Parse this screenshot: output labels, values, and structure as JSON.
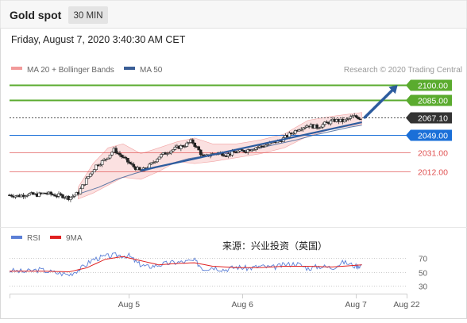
{
  "header": {
    "title": "Gold spot",
    "timeframe_badge": "30 MIN",
    "datetime": "Friday, August 7, 2020 3:40:30 AM CET"
  },
  "legend": {
    "ma20_bb_label": "MA 20 + Bollinger Bands",
    "ma50_label": "MA 50",
    "attribution": "Research © 2020 Trading Central",
    "rsi_label": "RSI",
    "rsi_ma_label": "9MA",
    "source_label": "来源：兴业投资（英国）"
  },
  "colors": {
    "price_green": "#5aab2e",
    "price_blue": "#1a6fd8",
    "price_red": "#e05252",
    "current_price_bg": "#333333",
    "arrow_blue": "#2d5c9e",
    "ma50_line": "#3a5e96",
    "bollinger_fill": "#f7c8c8",
    "rsi_line": "#5b7fd6",
    "rsi_ma_line": "#e02020"
  },
  "chart_data": [
    {
      "type": "candlestick",
      "title": "Gold spot",
      "ylim": [
        1985,
        2110
      ],
      "price_levels": [
        {
          "label": "2100.00",
          "value": 2100.0,
          "kind": "resistance",
          "color": "#5aab2e"
        },
        {
          "label": "2085.00",
          "value": 2085.0,
          "kind": "resistance",
          "color": "#5aab2e"
        },
        {
          "label": "2067.10",
          "value": 2067.1,
          "kind": "current",
          "color": "#333333"
        },
        {
          "label": "2049.00",
          "value": 2049.0,
          "kind": "pivot",
          "color": "#1a6fd8"
        },
        {
          "label": "2031.00",
          "value": 2031.0,
          "kind": "support",
          "color": "#e05252"
        },
        {
          "label": "2012.00",
          "value": 2012.0,
          "kind": "support",
          "color": "#e05252"
        }
      ],
      "x_tick_labels": [
        "Aug 5",
        "Aug 6",
        "Aug 7",
        "Aug 22"
      ],
      "price_path": [
        {
          "t": 0,
          "y": 1988
        },
        {
          "t": 3,
          "y": 1987
        },
        {
          "t": 6,
          "y": 1989
        },
        {
          "t": 9,
          "y": 1988
        },
        {
          "t": 12,
          "y": 1990
        },
        {
          "t": 15,
          "y": 1988
        },
        {
          "t": 18,
          "y": 1987
        },
        {
          "t": 20,
          "y": 1985
        },
        {
          "t": 23,
          "y": 1990
        },
        {
          "t": 26,
          "y": 2005
        },
        {
          "t": 29,
          "y": 2018
        },
        {
          "t": 32,
          "y": 2024
        },
        {
          "t": 35,
          "y": 2034
        },
        {
          "t": 38,
          "y": 2026
        },
        {
          "t": 41,
          "y": 2018
        },
        {
          "t": 44,
          "y": 2012
        },
        {
          "t": 47,
          "y": 2018
        },
        {
          "t": 50,
          "y": 2027
        },
        {
          "t": 53,
          "y": 2032
        },
        {
          "t": 56,
          "y": 2036
        },
        {
          "t": 59,
          "y": 2039
        },
        {
          "t": 61,
          "y": 2043
        },
        {
          "t": 63,
          "y": 2035
        },
        {
          "t": 65,
          "y": 2026
        },
        {
          "t": 67,
          "y": 2029
        },
        {
          "t": 70,
          "y": 2031
        },
        {
          "t": 73,
          "y": 2029
        },
        {
          "t": 76,
          "y": 2032
        },
        {
          "t": 79,
          "y": 2033
        },
        {
          "t": 82,
          "y": 2036
        },
        {
          "t": 85,
          "y": 2038
        },
        {
          "t": 88,
          "y": 2041
        },
        {
          "t": 91,
          "y": 2044
        },
        {
          "t": 94,
          "y": 2050
        },
        {
          "t": 97,
          "y": 2056
        },
        {
          "t": 100,
          "y": 2059
        },
        {
          "t": 103,
          "y": 2057
        },
        {
          "t": 106,
          "y": 2061
        },
        {
          "t": 109,
          "y": 2064
        },
        {
          "t": 112,
          "y": 2063
        },
        {
          "t": 115,
          "y": 2068
        },
        {
          "t": 118,
          "y": 2066
        }
      ],
      "ma50_path": [
        {
          "t": 24,
          "y": 1990
        },
        {
          "t": 30,
          "y": 1996
        },
        {
          "t": 36,
          "y": 2004
        },
        {
          "t": 42,
          "y": 2010
        },
        {
          "t": 48,
          "y": 2015
        },
        {
          "t": 54,
          "y": 2020
        },
        {
          "t": 60,
          "y": 2025
        },
        {
          "t": 66,
          "y": 2028
        },
        {
          "t": 72,
          "y": 2030
        },
        {
          "t": 78,
          "y": 2033
        },
        {
          "t": 84,
          "y": 2036
        },
        {
          "t": 90,
          "y": 2040
        },
        {
          "t": 96,
          "y": 2044
        },
        {
          "t": 102,
          "y": 2049
        },
        {
          "t": 108,
          "y": 2053
        },
        {
          "t": 114,
          "y": 2057
        },
        {
          "t": 118,
          "y": 2059
        }
      ],
      "trendline": {
        "from": {
          "t": 44,
          "y": 2013
        },
        "to": {
          "t": 118,
          "y": 2062
        }
      },
      "projection_arrow": {
        "from": {
          "t": 119,
          "y": 2067
        },
        "to": {
          "t": 130,
          "y": 2100
        }
      },
      "bollinger_band": {
        "upper": [
          {
            "t": 23,
            "y": 1996
          },
          {
            "t": 28,
            "y": 2020
          },
          {
            "t": 33,
            "y": 2036
          },
          {
            "t": 38,
            "y": 2040
          },
          {
            "t": 44,
            "y": 2030
          },
          {
            "t": 50,
            "y": 2036
          },
          {
            "t": 56,
            "y": 2042
          },
          {
            "t": 62,
            "y": 2046
          },
          {
            "t": 68,
            "y": 2040
          },
          {
            "t": 76,
            "y": 2040
          },
          {
            "t": 84,
            "y": 2044
          },
          {
            "t": 92,
            "y": 2050
          },
          {
            "t": 100,
            "y": 2064
          },
          {
            "t": 108,
            "y": 2068
          },
          {
            "t": 118,
            "y": 2072
          }
        ],
        "lower": [
          {
            "t": 118,
            "y": 2060
          },
          {
            "t": 108,
            "y": 2055
          },
          {
            "t": 100,
            "y": 2048
          },
          {
            "t": 92,
            "y": 2036
          },
          {
            "t": 84,
            "y": 2030
          },
          {
            "t": 76,
            "y": 2026
          },
          {
            "t": 68,
            "y": 2022
          },
          {
            "t": 62,
            "y": 2020
          },
          {
            "t": 56,
            "y": 2022
          },
          {
            "t": 50,
            "y": 2012
          },
          {
            "t": 44,
            "y": 2004
          },
          {
            "t": 38,
            "y": 2006
          },
          {
            "t": 33,
            "y": 1998
          },
          {
            "t": 28,
            "y": 1990
          },
          {
            "t": 23,
            "y": 1984
          }
        ]
      }
    },
    {
      "type": "line",
      "title": "",
      "ylim": [
        20,
        80
      ],
      "y_tick_labels": [
        "70",
        "50",
        "30"
      ],
      "y_ticks": [
        70,
        50,
        30
      ],
      "series": [
        {
          "name": "RSI",
          "color": "#5b7fd6",
          "values": [
            {
              "t": 0,
              "y": 52
            },
            {
              "t": 5,
              "y": 50
            },
            {
              "t": 10,
              "y": 53
            },
            {
              "t": 15,
              "y": 49
            },
            {
              "t": 20,
              "y": 46
            },
            {
              "t": 24,
              "y": 55
            },
            {
              "t": 28,
              "y": 68
            },
            {
              "t": 32,
              "y": 72
            },
            {
              "t": 36,
              "y": 74
            },
            {
              "t": 40,
              "y": 73
            },
            {
              "t": 43,
              "y": 62
            },
            {
              "t": 46,
              "y": 57
            },
            {
              "t": 50,
              "y": 60
            },
            {
              "t": 54,
              "y": 63
            },
            {
              "t": 58,
              "y": 64
            },
            {
              "t": 62,
              "y": 66
            },
            {
              "t": 65,
              "y": 54
            },
            {
              "t": 68,
              "y": 57
            },
            {
              "t": 72,
              "y": 53
            },
            {
              "t": 76,
              "y": 57
            },
            {
              "t": 80,
              "y": 55
            },
            {
              "t": 84,
              "y": 58
            },
            {
              "t": 88,
              "y": 56
            },
            {
              "t": 92,
              "y": 60
            },
            {
              "t": 96,
              "y": 62
            },
            {
              "t": 100,
              "y": 55
            },
            {
              "t": 104,
              "y": 58
            },
            {
              "t": 108,
              "y": 56
            },
            {
              "t": 112,
              "y": 64
            },
            {
              "t": 116,
              "y": 58
            },
            {
              "t": 118,
              "y": 60
            }
          ]
        },
        {
          "name": "9MA",
          "color": "#e02020",
          "values": [
            {
              "t": 0,
              "y": 51
            },
            {
              "t": 10,
              "y": 51
            },
            {
              "t": 20,
              "y": 50
            },
            {
              "t": 26,
              "y": 56
            },
            {
              "t": 32,
              "y": 68
            },
            {
              "t": 38,
              "y": 72
            },
            {
              "t": 44,
              "y": 66
            },
            {
              "t": 50,
              "y": 60
            },
            {
              "t": 56,
              "y": 62
            },
            {
              "t": 62,
              "y": 63
            },
            {
              "t": 68,
              "y": 58
            },
            {
              "t": 76,
              "y": 56
            },
            {
              "t": 84,
              "y": 56
            },
            {
              "t": 92,
              "y": 58
            },
            {
              "t": 100,
              "y": 58
            },
            {
              "t": 108,
              "y": 57
            },
            {
              "t": 118,
              "y": 60
            }
          ]
        }
      ]
    }
  ]
}
